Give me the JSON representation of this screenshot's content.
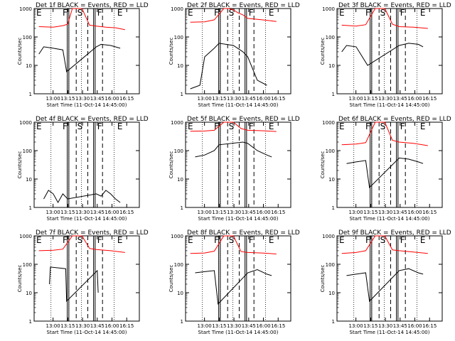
{
  "chart_data": [
    {
      "type": "line",
      "title": "Det 1f BLACK = Events, RED = LLD",
      "xlabel": "Start Time (11-Oct-14 14:45:00)",
      "ylabel": "Counts/sec",
      "yscale": "log",
      "ylim": [
        1,
        1000
      ],
      "xlim": [
        "12:40",
        "16:30"
      ],
      "xticks": [
        "13:00",
        "13:15",
        "13:30",
        "13:45",
        "16:00",
        "16:15"
      ],
      "yticks": [
        "1",
        "10",
        "100",
        "1000"
      ],
      "regions": [
        "E",
        "F",
        "S",
        "F",
        "E"
      ],
      "series": [
        {
          "color": "#ff0000",
          "points": [
            [
              "12:45",
              230
            ],
            [
              "13:00",
              220
            ],
            [
              "13:10",
              250
            ],
            [
              "13:15",
              280
            ],
            [
              "13:20",
              1000
            ],
            [
              "13:25",
              1000
            ],
            [
              "13:30",
              1000
            ],
            [
              "13:38",
              260
            ],
            [
              "13:45",
              240
            ],
            [
              "13:55",
              220
            ],
            [
              "14:05",
              210
            ],
            [
              "14:15",
              180
            ]
          ]
        },
        {
          "color": "#000000",
          "points": [
            [
              "12:45",
              25
            ],
            [
              "12:50",
              45
            ],
            [
              "13:00",
              40
            ],
            [
              "13:10",
              35
            ],
            [
              "13:14",
              6
            ],
            [
              "13:45",
              45
            ],
            [
              "13:50",
              55
            ],
            [
              "14:00",
              50
            ],
            [
              "14:10",
              40
            ]
          ]
        }
      ]
    },
    {
      "type": "line",
      "title": "Det 2f BLACK = Events, RED = LLD",
      "xlabel": "Start Time (11-Oct-14 14:45:00)",
      "ylabel": "Counts/sec",
      "yscale": "log",
      "ylim": [
        1,
        1000
      ],
      "xlim": [
        "12:40",
        "16:30"
      ],
      "xticks": [
        "13:00",
        "13:15",
        "13:30",
        "13:45",
        "16:00",
        "16:15"
      ],
      "yticks": [
        "1",
        "10",
        "100",
        "1000"
      ],
      "regions": [
        "E",
        "F",
        "S",
        "F",
        "E"
      ],
      "series": [
        {
          "color": "#ff0000",
          "points": [
            [
              "12:45",
              330
            ],
            [
              "13:00",
              340
            ],
            [
              "13:10",
              400
            ],
            [
              "13:20",
              1100
            ],
            [
              "13:25",
              1300
            ],
            [
              "13:30",
              900
            ],
            [
              "13:35",
              700
            ],
            [
              "13:40",
              600
            ],
            [
              "13:45",
              450
            ],
            [
              "14:00",
              400
            ],
            [
              "14:15",
              350
            ]
          ]
        },
        {
          "color": "#000000",
          "points": [
            [
              "12:45",
              1.5
            ],
            [
              "12:55",
              2
            ],
            [
              "13:00",
              20
            ],
            [
              "13:10",
              40
            ],
            [
              "13:15",
              60
            ],
            [
              "13:30",
              50
            ],
            [
              "13:40",
              30
            ],
            [
              "13:45",
              20
            ],
            [
              "13:55",
              3
            ],
            [
              "14:05",
              2
            ]
          ]
        }
      ]
    },
    {
      "type": "line",
      "title": "Det 3f BLACK = Events, RED = LLD",
      "xlabel": "Start Time (11-Oct-14 14:45:00)",
      "ylabel": "Counts/sec",
      "yscale": "log",
      "ylim": [
        1,
        1000
      ],
      "xlim": [
        "12:40",
        "16:30"
      ],
      "xticks": [
        "13:00",
        "13:15",
        "13:30",
        "13:45",
        "16:00",
        "16:15"
      ],
      "yticks": [
        "1",
        "10",
        "100",
        "1000"
      ],
      "regions": [
        "E",
        "F",
        "S",
        "F",
        "E"
      ],
      "series": [
        {
          "color": "#ff0000",
          "points": [
            [
              "12:45",
              260
            ],
            [
              "13:00",
              240
            ],
            [
              "13:10",
              270
            ],
            [
              "13:20",
              1000
            ],
            [
              "13:30",
              1000
            ],
            [
              "13:38",
              280
            ],
            [
              "13:45",
              230
            ],
            [
              "14:00",
              220
            ],
            [
              "14:15",
              200
            ]
          ]
        },
        {
          "color": "#000000",
          "points": [
            [
              "12:45",
              30
            ],
            [
              "12:50",
              50
            ],
            [
              "13:00",
              45
            ],
            [
              "13:12",
              10
            ],
            [
              "13:45",
              50
            ],
            [
              "13:55",
              60
            ],
            [
              "14:05",
              55
            ],
            [
              "14:10",
              45
            ]
          ]
        }
      ]
    },
    {
      "type": "line",
      "title": "Det 4f BLACK = Events, RED = LLD",
      "xlabel": "Start Time (11-Oct-14 14:45:00)",
      "ylabel": "Counts/sec",
      "yscale": "log",
      "ylim": [
        1,
        1000
      ],
      "xlim": [
        "12:40",
        "16:30"
      ],
      "xticks": [
        "13:00",
        "13:15",
        "13:30",
        "13:45",
        "16:00",
        "16:15"
      ],
      "yticks": [
        "1",
        "10",
        "100",
        "1000"
      ],
      "regions": [
        "E",
        "F",
        "S",
        "F",
        "E"
      ],
      "series": [
        {
          "color": "#000000",
          "points": [
            [
              "12:50",
              2
            ],
            [
              "12:55",
              4
            ],
            [
              "13:00",
              3
            ],
            [
              "13:05",
              1.5
            ],
            [
              "13:10",
              3
            ],
            [
              "13:15",
              2
            ],
            [
              "13:45",
              3
            ],
            [
              "13:50",
              2.5
            ],
            [
              "13:55",
              4
            ],
            [
              "14:00",
              3
            ],
            [
              "14:05",
              2
            ],
            [
              "14:10",
              1.5
            ]
          ]
        }
      ]
    },
    {
      "type": "line",
      "title": "Det 5f BLACK = Events, RED = LLD",
      "xlabel": "Start Time (11-Oct-14 14:45:00)",
      "ylabel": "Counts/sec",
      "yscale": "log",
      "ylim": [
        1,
        1000
      ],
      "xlim": [
        "12:40",
        "16:30"
      ],
      "xticks": [
        "13:00",
        "13:15",
        "13:30",
        "13:45",
        "16:00",
        "16:15"
      ],
      "yticks": [
        "1",
        "10",
        "100",
        "1000"
      ],
      "regions": [
        "E",
        "F",
        "S",
        "F",
        "E"
      ],
      "series": [
        {
          "color": "#ff0000",
          "points": [
            [
              "12:45",
              480
            ],
            [
              "13:00",
              490
            ],
            [
              "13:10",
              520
            ],
            [
              "13:20",
              1100
            ],
            [
              "13:30",
              1200
            ],
            [
              "13:38",
              600
            ],
            [
              "13:45",
              520
            ],
            [
              "14:00",
              500
            ],
            [
              "14:15",
              470
            ]
          ]
        },
        {
          "color": "#000000",
          "points": [
            [
              "12:50",
              60
            ],
            [
              "13:00",
              70
            ],
            [
              "13:10",
              100
            ],
            [
              "13:15",
              160
            ],
            [
              "13:40",
              200
            ],
            [
              "13:45",
              180
            ],
            [
              "13:55",
              100
            ],
            [
              "14:05",
              70
            ],
            [
              "14:10",
              60
            ]
          ]
        }
      ]
    },
    {
      "type": "line",
      "title": "Det 6f BLACK = Events, RED = LLD",
      "xlabel": "Start Time (11-Oct-14 14:45:00)",
      "ylabel": "Counts/sec",
      "yscale": "log",
      "ylim": [
        1,
        1000
      ],
      "xlim": [
        "12:40",
        "16:30"
      ],
      "xticks": [
        "13:00",
        "13:15",
        "13:30",
        "13:45",
        "16:00",
        "16:15"
      ],
      "yticks": [
        "1",
        "10",
        "100",
        "1000"
      ],
      "regions": [
        "E",
        "F",
        "S",
        "F",
        "E"
      ],
      "series": [
        {
          "color": "#ff0000",
          "points": [
            [
              "12:45",
              160
            ],
            [
              "13:00",
              170
            ],
            [
              "13:10",
              190
            ],
            [
              "13:20",
              1000
            ],
            [
              "13:30",
              1000
            ],
            [
              "13:38",
              230
            ],
            [
              "13:45",
              200
            ],
            [
              "14:00",
              180
            ],
            [
              "14:15",
              150
            ]
          ]
        },
        {
          "color": "#000000",
          "points": [
            [
              "12:50",
              35
            ],
            [
              "13:00",
              40
            ],
            [
              "13:10",
              45
            ],
            [
              "13:14",
              5
            ],
            [
              "13:45",
              55
            ],
            [
              "13:55",
              50
            ],
            [
              "14:05",
              40
            ],
            [
              "14:10",
              35
            ]
          ]
        }
      ]
    },
    {
      "type": "line",
      "title": "Det 7f BLACK = Events, RED = LLD",
      "xlabel": "Start Time (11-Oct-14 14:45:00)",
      "ylabel": "Counts/sec",
      "yscale": "log",
      "ylim": [
        1,
        1000
      ],
      "xlim": [
        "12:40",
        "16:30"
      ],
      "xticks": [
        "13:00",
        "13:15",
        "13:30",
        "13:45",
        "16:00",
        "16:15"
      ],
      "yticks": [
        "1",
        "10",
        "100",
        "1000"
      ],
      "regions": [
        "E",
        "F",
        "S",
        "F",
        "E"
      ],
      "series": [
        {
          "color": "#ff0000",
          "points": [
            [
              "12:45",
              300
            ],
            [
              "13:00",
              310
            ],
            [
              "13:10",
              340
            ],
            [
              "13:20",
              1000
            ],
            [
              "13:30",
              1000
            ],
            [
              "13:38",
              360
            ],
            [
              "13:45",
              330
            ],
            [
              "14:00",
              300
            ],
            [
              "14:15",
              260
            ]
          ]
        },
        {
          "color": "#000000",
          "points": [
            [
              "12:56",
              20
            ],
            [
              "12:57",
              80
            ],
            [
              "13:13",
              70
            ],
            [
              "13:14",
              5
            ],
            [
              "13:46",
              60
            ],
            [
              "13:47",
              10
            ]
          ]
        }
      ]
    },
    {
      "type": "line",
      "title": "Det 8f BLACK = Events, RED = LLD",
      "xlabel": "Start Time (11-Oct-14 14:45:00)",
      "ylabel": "Counts/sec",
      "yscale": "log",
      "ylim": [
        1,
        1000
      ],
      "xlim": [
        "12:40",
        "16:30"
      ],
      "xticks": [
        "13:00",
        "13:15",
        "13:30",
        "13:45",
        "16:00",
        "16:15"
      ],
      "yticks": [
        "1",
        "10",
        "100",
        "1000"
      ],
      "regions": [
        "E",
        "F",
        "S",
        "F",
        "E"
      ],
      "series": [
        {
          "color": "#ff0000",
          "points": [
            [
              "12:45",
              240
            ],
            [
              "13:00",
              250
            ],
            [
              "13:10",
              290
            ],
            [
              "13:20",
              1000
            ],
            [
              "13:30",
              1000
            ],
            [
              "13:38",
              280
            ],
            [
              "13:45",
              260
            ],
            [
              "14:00",
              250
            ],
            [
              "14:15",
              230
            ]
          ]
        },
        {
          "color": "#000000",
          "points": [
            [
              "12:50",
              50
            ],
            [
              "13:00",
              55
            ],
            [
              "13:10",
              60
            ],
            [
              "13:14",
              4
            ],
            [
              "13:45",
              50
            ],
            [
              "13:55",
              65
            ],
            [
              "14:05",
              45
            ],
            [
              "14:10",
              40
            ]
          ]
        }
      ]
    },
    {
      "type": "line",
      "title": "Det 9f BLACK = Events, RED = LLD",
      "xlabel": "Start Time (11-Oct-14 14:45:00)",
      "ylabel": "Counts/sec",
      "yscale": "log",
      "ylim": [
        1,
        1000
      ],
      "xlim": [
        "12:40",
        "16:30"
      ],
      "xticks": [
        "13:00",
        "13:15",
        "13:30",
        "13:45",
        "16:00",
        "16:15"
      ],
      "yticks": [
        "1",
        "10",
        "100",
        "1000"
      ],
      "regions": [
        "E",
        "F",
        "S",
        "F",
        "E"
      ],
      "series": [
        {
          "color": "#ff0000",
          "points": [
            [
              "12:45",
              240
            ],
            [
              "13:00",
              260
            ],
            [
              "13:10",
              300
            ],
            [
              "13:20",
              1000
            ],
            [
              "13:30",
              1000
            ],
            [
              "13:38",
              320
            ],
            [
              "13:45",
              300
            ],
            [
              "14:00",
              270
            ],
            [
              "14:15",
              240
            ]
          ]
        },
        {
          "color": "#000000",
          "points": [
            [
              "12:50",
              40
            ],
            [
              "13:00",
              45
            ],
            [
              "13:10",
              50
            ],
            [
              "13:14",
              5
            ],
            [
              "13:45",
              60
            ],
            [
              "13:55",
              70
            ],
            [
              "14:05",
              50
            ],
            [
              "14:10",
              45
            ]
          ]
        }
      ]
    }
  ]
}
